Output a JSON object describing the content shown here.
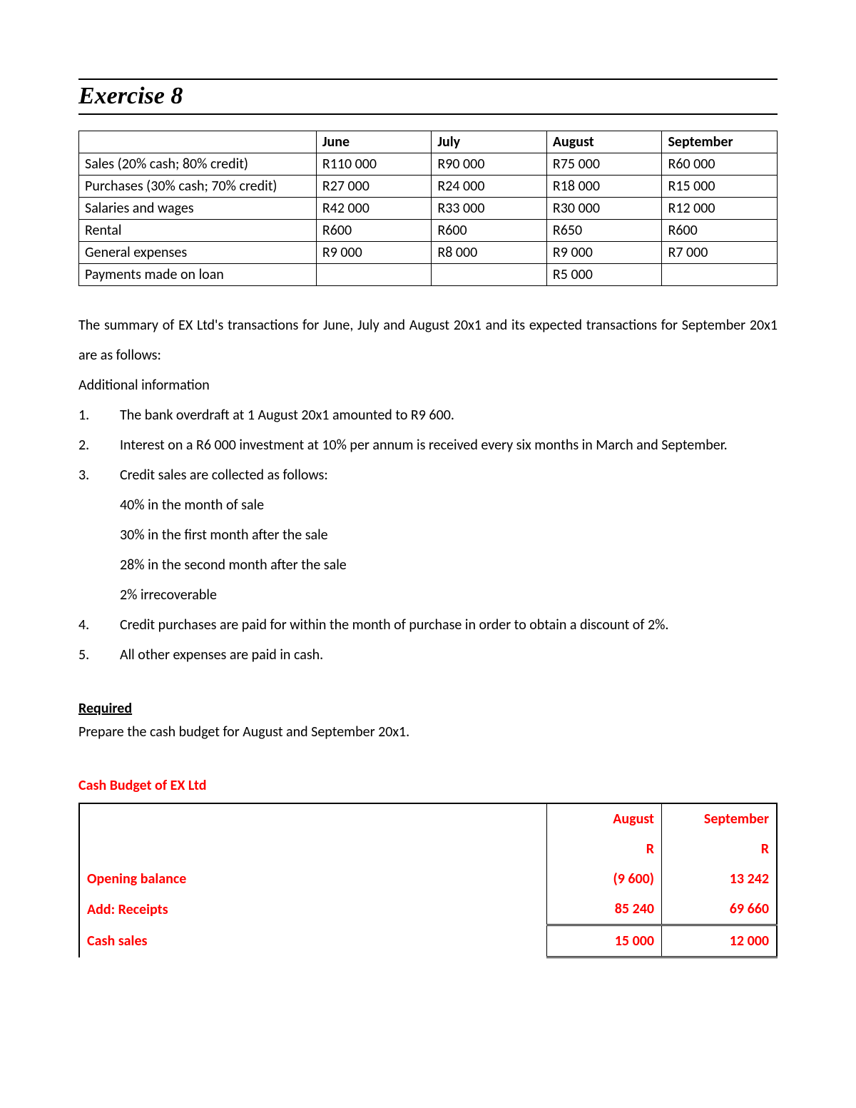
{
  "title": "Exercise 8",
  "table1": {
    "columns": [
      "",
      "June",
      "July",
      "August",
      "September"
    ],
    "rows": [
      [
        "Sales (20% cash; 80% credit)",
        "R110 000",
        "R90 000",
        "R75 000",
        "R60 000"
      ],
      [
        "Purchases (30% cash; 70% credit)",
        "R27 000",
        "R24 000",
        "R18 000",
        "R15 000"
      ],
      [
        "Salaries and wages",
        "R42 000",
        "R33 000",
        "R30 000",
        "R12 000"
      ],
      [
        "Rental",
        "R600",
        "R600",
        "R650",
        "R600"
      ],
      [
        "General expenses",
        "R9 000",
        "R8 000",
        "R9 000",
        "R7 000"
      ],
      [
        "Payments made on loan",
        "",
        "",
        "R5 000",
        ""
      ]
    ]
  },
  "intro": "The summary of EX Ltd's transactions for June, July and August 20x1 and its expected transactions for September 20x1 are as follows:",
  "additional_heading": "Additional information",
  "info": [
    {
      "n": "1.",
      "text": "The bank overdraft at 1 August 20x1 amounted to R9 600."
    },
    {
      "n": "2.",
      "text": "Interest on a R6 000 investment at 10% per annum is received every six months in March and September."
    },
    {
      "n": "3.",
      "text": "Credit sales are collected as follows:"
    },
    {
      "n": "",
      "text": "40% in the month of sale"
    },
    {
      "n": "",
      "text": "30% in the first month after the sale"
    },
    {
      "n": "",
      "text": "28% in the second month after the sale"
    },
    {
      "n": "",
      "text": "2% irrecoverable"
    },
    {
      "n": "4.",
      "text": "Credit purchases are paid for within the month of purchase in order to obtain a discount of 2%."
    },
    {
      "n": "5.",
      "text": "All other expenses are paid in cash."
    }
  ],
  "required_heading": "Required",
  "required_text": "Prepare the cash budget for August and September 20x1.",
  "budget_title": "Cash Budget of EX Ltd",
  "budget": {
    "col_headers": [
      "",
      "August",
      "September"
    ],
    "currency_row": [
      "",
      "R",
      "R"
    ],
    "rows": [
      {
        "label": "Opening balance",
        "aug": "(9 600)",
        "sep": "13 242",
        "indent": false,
        "box": false
      },
      {
        "label": "Add: Receipts",
        "aug": "85 240",
        "sep": "69 660",
        "indent": false,
        "box": false
      },
      {
        "label": "Cash sales",
        "aug": "15 000",
        "sep": "12 000",
        "indent": true,
        "box": true
      }
    ]
  },
  "colors": {
    "text": "#000000",
    "accent": "#ff0000",
    "border": "#000000",
    "background": "#ffffff"
  },
  "fonts": {
    "body": "Calibri",
    "title": "Times New Roman Italic Bold",
    "body_size_pt": 15,
    "title_size_pt": 26
  }
}
